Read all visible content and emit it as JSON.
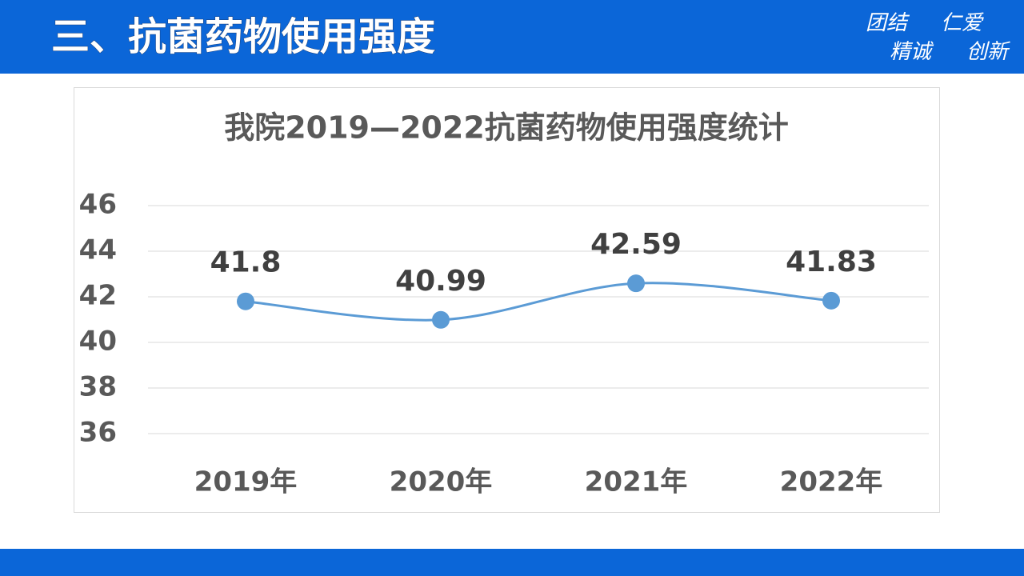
{
  "header": {
    "title": "三、抗菌药物使用强度",
    "motto": [
      [
        "团结",
        "仁爱"
      ],
      [
        "精诚",
        "创新"
      ]
    ]
  },
  "chart_data": {
    "type": "line",
    "title": "我院2019—2022抗菌药物使用强度统计",
    "categories": [
      "2019年",
      "2020年",
      "2021年",
      "2022年"
    ],
    "values": [
      41.8,
      40.99,
      42.59,
      41.83
    ],
    "color": "#5b9bd5",
    "ylim": [
      36,
      46
    ],
    "yticks": [
      36,
      38,
      40,
      42,
      44,
      46
    ],
    "grid": true,
    "smooth": true
  }
}
